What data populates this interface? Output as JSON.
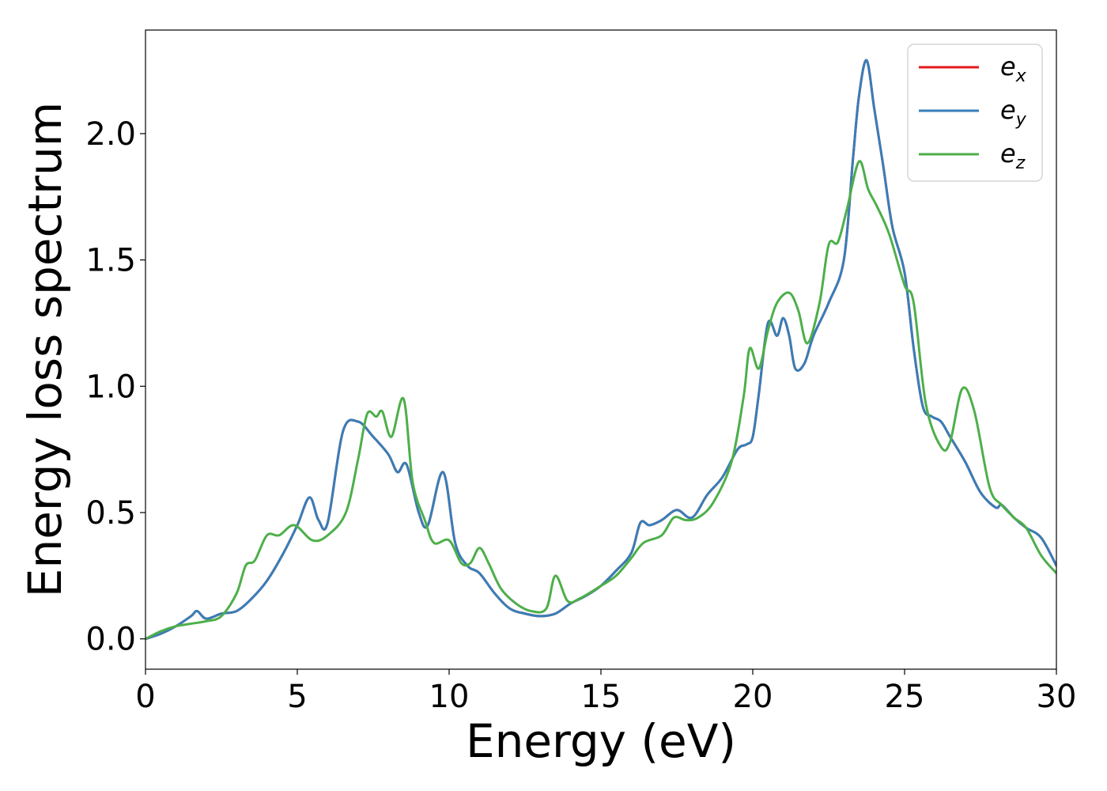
{
  "chart_data": {
    "type": "line",
    "title": "",
    "xlabel": "Energy (eV)",
    "ylabel": "Energy loss spectrum",
    "xlim": [
      0,
      30
    ],
    "ylim": [
      -0.12,
      2.41
    ],
    "xticks": [
      0,
      5,
      10,
      15,
      20,
      25,
      30
    ],
    "xtick_labels": [
      "0",
      "5",
      "10",
      "15",
      "20",
      "25",
      "30"
    ],
    "yticks": [
      0.0,
      0.5,
      1.0,
      1.5,
      2.0
    ],
    "ytick_labels": [
      "0.0",
      "0.5",
      "1.0",
      "1.5",
      "2.0"
    ],
    "grid": false,
    "legend_position": "top-right",
    "series": [
      {
        "name": "e_x",
        "label_base": "e",
        "label_sub": "x",
        "color": "#e41a1c",
        "x": [
          0,
          0.5,
          1.0,
          1.5,
          1.7,
          2.0,
          2.5,
          3.0,
          3.5,
          4.0,
          4.5,
          5.0,
          5.4,
          5.7,
          6.0,
          6.5,
          7.0,
          7.5,
          8.0,
          8.3,
          8.6,
          9.0,
          9.3,
          9.8,
          10.2,
          10.6,
          11.0,
          11.5,
          12.0,
          12.5,
          13.0,
          13.5,
          14.0,
          14.5,
          15.0,
          15.5,
          16.0,
          16.3,
          16.6,
          17.0,
          17.5,
          18.0,
          18.5,
          19.0,
          19.5,
          19.8,
          20.0,
          20.2,
          20.5,
          20.8,
          21.0,
          21.2,
          21.4,
          21.7,
          22.0,
          22.5,
          23.0,
          23.3,
          23.5,
          23.75,
          24.0,
          24.3,
          24.6,
          25.0,
          25.3,
          25.6,
          25.9,
          26.2,
          26.5,
          27.0,
          27.5,
          28.0,
          28.2,
          28.6,
          29.0,
          29.5,
          30.0
        ],
        "y": [
          0.0,
          0.02,
          0.05,
          0.09,
          0.11,
          0.08,
          0.1,
          0.11,
          0.16,
          0.23,
          0.33,
          0.45,
          0.56,
          0.47,
          0.46,
          0.82,
          0.86,
          0.8,
          0.73,
          0.66,
          0.69,
          0.5,
          0.45,
          0.66,
          0.38,
          0.29,
          0.26,
          0.18,
          0.12,
          0.1,
          0.09,
          0.1,
          0.14,
          0.17,
          0.21,
          0.27,
          0.34,
          0.46,
          0.45,
          0.47,
          0.51,
          0.48,
          0.57,
          0.64,
          0.75,
          0.77,
          0.8,
          0.97,
          1.25,
          1.2,
          1.27,
          1.2,
          1.07,
          1.09,
          1.2,
          1.33,
          1.5,
          1.9,
          2.15,
          2.29,
          2.1,
          1.87,
          1.63,
          1.45,
          1.15,
          0.92,
          0.88,
          0.86,
          0.8,
          0.7,
          0.58,
          0.52,
          0.53,
          0.48,
          0.44,
          0.4,
          0.29
        ]
      },
      {
        "name": "e_y",
        "label_base": "e",
        "label_sub": "y",
        "color": "#377eb8",
        "x": [
          0,
          0.5,
          1.0,
          1.5,
          1.7,
          2.0,
          2.5,
          3.0,
          3.5,
          4.0,
          4.5,
          5.0,
          5.4,
          5.7,
          6.0,
          6.5,
          7.0,
          7.5,
          8.0,
          8.3,
          8.6,
          9.0,
          9.3,
          9.8,
          10.2,
          10.6,
          11.0,
          11.5,
          12.0,
          12.5,
          13.0,
          13.5,
          14.0,
          14.5,
          15.0,
          15.5,
          16.0,
          16.3,
          16.6,
          17.0,
          17.5,
          18.0,
          18.5,
          19.0,
          19.5,
          19.8,
          20.0,
          20.2,
          20.5,
          20.8,
          21.0,
          21.2,
          21.4,
          21.7,
          22.0,
          22.5,
          23.0,
          23.3,
          23.5,
          23.75,
          24.0,
          24.3,
          24.6,
          25.0,
          25.3,
          25.6,
          25.9,
          26.2,
          26.5,
          27.0,
          27.5,
          28.0,
          28.2,
          28.6,
          29.0,
          29.5,
          30.0
        ],
        "y": [
          0.0,
          0.02,
          0.05,
          0.09,
          0.11,
          0.08,
          0.1,
          0.11,
          0.16,
          0.23,
          0.33,
          0.45,
          0.56,
          0.47,
          0.46,
          0.82,
          0.86,
          0.8,
          0.73,
          0.66,
          0.69,
          0.5,
          0.45,
          0.66,
          0.38,
          0.29,
          0.26,
          0.18,
          0.12,
          0.1,
          0.09,
          0.1,
          0.14,
          0.17,
          0.21,
          0.27,
          0.34,
          0.46,
          0.45,
          0.47,
          0.51,
          0.48,
          0.57,
          0.64,
          0.75,
          0.77,
          0.8,
          0.97,
          1.25,
          1.2,
          1.27,
          1.2,
          1.07,
          1.09,
          1.2,
          1.33,
          1.5,
          1.9,
          2.15,
          2.29,
          2.1,
          1.87,
          1.63,
          1.45,
          1.15,
          0.92,
          0.88,
          0.86,
          0.8,
          0.7,
          0.58,
          0.52,
          0.53,
          0.48,
          0.44,
          0.4,
          0.29
        ]
      },
      {
        "name": "e_z",
        "label_base": "e",
        "label_sub": "z",
        "color": "#4daf4a",
        "x": [
          0,
          0.5,
          1.0,
          1.5,
          2.0,
          2.5,
          3.0,
          3.3,
          3.6,
          4.0,
          4.4,
          4.9,
          5.5,
          6.0,
          6.6,
          7.0,
          7.3,
          7.6,
          7.8,
          8.1,
          8.5,
          8.8,
          9.2,
          9.5,
          10.0,
          10.4,
          10.7,
          11.0,
          11.3,
          11.7,
          12.2,
          12.7,
          13.2,
          13.5,
          13.9,
          14.3,
          15.0,
          15.5,
          16.0,
          16.4,
          17.0,
          17.4,
          17.8,
          18.2,
          18.7,
          19.3,
          19.7,
          19.9,
          20.2,
          20.5,
          20.8,
          21.2,
          21.5,
          21.8,
          22.2,
          22.5,
          22.8,
          23.1,
          23.5,
          23.8,
          24.1,
          24.5,
          25.0,
          25.3,
          25.7,
          26.2,
          26.5,
          26.9,
          27.3,
          27.8,
          28.2,
          28.6,
          29.0,
          29.5,
          30.0
        ],
        "y": [
          0.0,
          0.03,
          0.05,
          0.06,
          0.07,
          0.09,
          0.18,
          0.29,
          0.31,
          0.41,
          0.41,
          0.45,
          0.39,
          0.41,
          0.5,
          0.71,
          0.89,
          0.88,
          0.9,
          0.8,
          0.95,
          0.62,
          0.47,
          0.38,
          0.39,
          0.3,
          0.3,
          0.36,
          0.3,
          0.2,
          0.14,
          0.11,
          0.12,
          0.25,
          0.15,
          0.16,
          0.21,
          0.25,
          0.32,
          0.38,
          0.41,
          0.48,
          0.47,
          0.48,
          0.54,
          0.7,
          0.96,
          1.15,
          1.07,
          1.22,
          1.33,
          1.37,
          1.3,
          1.17,
          1.33,
          1.56,
          1.57,
          1.7,
          1.89,
          1.78,
          1.71,
          1.6,
          1.4,
          1.33,
          0.93,
          0.76,
          0.78,
          0.99,
          0.9,
          0.6,
          0.53,
          0.48,
          0.44,
          0.33,
          0.26
        ]
      }
    ]
  }
}
